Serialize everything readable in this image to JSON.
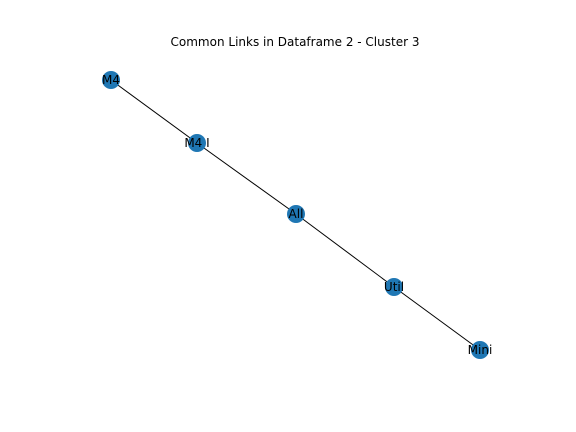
{
  "title": "Common Links in Dataframe 2 - Cluster 3",
  "graph": {
    "node_color": "#1f77b4",
    "edge_color": "#000000",
    "nodes": [
      {
        "id": "M4",
        "label": "M4"
      },
      {
        "id": "M4 I",
        "label": "M4 I"
      },
      {
        "id": "All",
        "label": "All"
      },
      {
        "id": "Util",
        "label": "Util"
      },
      {
        "id": "Mini",
        "label": "Mini"
      }
    ],
    "edges": [
      {
        "source": "M4",
        "target": "M4 I"
      },
      {
        "source": "M4 I",
        "target": "All"
      },
      {
        "source": "All",
        "target": "Util"
      },
      {
        "source": "Util",
        "target": "Mini"
      }
    ]
  }
}
